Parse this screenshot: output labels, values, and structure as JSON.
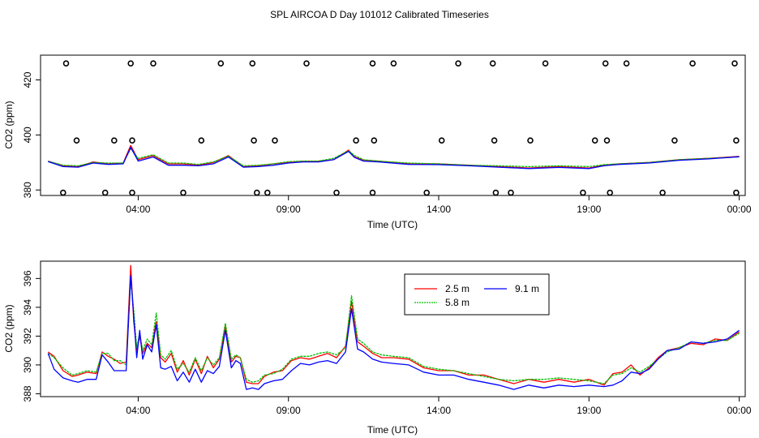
{
  "title": "SPL AIRCOA D  Day 101012  Calibrated Timeseries",
  "colors": {
    "red": "#ff0000",
    "green": "#00c000",
    "blue": "#0000ff",
    "black": "#000000"
  },
  "chart_data": [
    {
      "type": "scatter",
      "panel": "top",
      "xlabel": "Time (UTC)",
      "ylabel": "CO2 (ppm)",
      "x_ticks_labels": [
        "04:00",
        "09:00",
        "14:00",
        "19:00",
        "00:00"
      ],
      "x_ticks_hours": [
        4,
        9,
        14,
        19,
        24
      ],
      "y_ticks": [
        380,
        400,
        420
      ],
      "xlim_hours": [
        0.75,
        24.2
      ],
      "ylim": [
        378,
        429
      ],
      "line_series_hours": [
        1.0,
        1.5,
        2.0,
        2.5,
        3.0,
        3.5,
        3.75,
        4.0,
        4.5,
        5.0,
        5.5,
        6.0,
        6.5,
        7.0,
        7.5,
        8.0,
        8.5,
        9.0,
        9.5,
        10.0,
        10.5,
        11.0,
        11.2,
        11.5,
        12.0,
        13.0,
        14.0,
        15.0,
        16.0,
        17.0,
        18.0,
        19.0,
        19.5,
        20.0,
        21.0,
        22.0,
        23.0,
        24.0
      ],
      "line_series": [
        {
          "name": "2.5 m",
          "color": "#ff0000",
          "values": [
            390.5,
            388.8,
            388.5,
            390.2,
            389.5,
            389.8,
            396.2,
            391.0,
            392.5,
            389.5,
            389.5,
            389.0,
            390.0,
            392.5,
            388.5,
            388.8,
            389.5,
            390.0,
            390.5,
            390.5,
            391.0,
            394.5,
            392.0,
            390.8,
            390.5,
            389.5,
            389.5,
            389.0,
            388.5,
            388.0,
            388.5,
            388.0,
            389.0,
            389.5,
            390.0,
            391.0,
            391.5,
            392.2
          ]
        },
        {
          "name": "5.8 m",
          "color": "#00c000",
          "values": [
            390.4,
            389.0,
            388.8,
            390.0,
            389.8,
            389.8,
            395.0,
            391.5,
            392.8,
            389.8,
            389.8,
            389.3,
            390.2,
            392.3,
            388.8,
            389.0,
            389.5,
            390.3,
            390.5,
            390.5,
            391.5,
            394.2,
            392.5,
            391.0,
            390.5,
            389.8,
            389.5,
            389.0,
            388.8,
            388.5,
            388.8,
            388.5,
            389.2,
            389.5,
            390.0,
            391.0,
            391.5,
            392.0
          ]
        },
        {
          "name": "9.1 m",
          "color": "#0000ff",
          "values": [
            390.3,
            388.5,
            388.3,
            389.8,
            389.3,
            389.5,
            395.5,
            390.5,
            392.0,
            389.0,
            389.0,
            388.8,
            389.5,
            392.0,
            388.3,
            388.5,
            389.0,
            389.8,
            390.2,
            390.2,
            391.0,
            394.0,
            391.8,
            390.5,
            390.2,
            389.3,
            389.2,
            388.8,
            388.3,
            387.8,
            388.2,
            387.8,
            388.8,
            389.3,
            389.8,
            390.8,
            391.3,
            392.1
          ]
        }
      ],
      "marker_points_hours": [
        1.5,
        1.95,
        1.6,
        2.9,
        3.2,
        3.8,
        3.75,
        3.8,
        4.5,
        5.5,
        6.1,
        6.75,
        7.8,
        7.85,
        7.95,
        8.3,
        8.55,
        9.6,
        10.6,
        11.25,
        11.8,
        11.85,
        11.8,
        12.5,
        13.6,
        14.1,
        14.65,
        15.8,
        15.85,
        15.9,
        16.4,
        17.05,
        17.55,
        18.8,
        19.2,
        19.55,
        19.6,
        19.7,
        20.25,
        21.45,
        21.85,
        22.45,
        23.85,
        23.9,
        23.9
      ],
      "marker_points_values": [
        379,
        398,
        426,
        379,
        398,
        398,
        426,
        379,
        426,
        379,
        398,
        426,
        426,
        398,
        379,
        379,
        398,
        426,
        379,
        398,
        426,
        398,
        379,
        426,
        379,
        398,
        426,
        426,
        398,
        379,
        379,
        398,
        426,
        379,
        398,
        426,
        398,
        379,
        426,
        379,
        398,
        426,
        426,
        398,
        379
      ]
    },
    {
      "type": "line",
      "panel": "bottom",
      "xlabel": "Time (UTC)",
      "ylabel": "CO2 (ppm)",
      "x_ticks_labels": [
        "04:00",
        "09:00",
        "14:00",
        "19:00",
        "00:00"
      ],
      "x_ticks_hours": [
        4,
        9,
        14,
        19,
        24
      ],
      "y_ticks": [
        388,
        390,
        392,
        394,
        396
      ],
      "y_tick_labels": [
        "388",
        "390",
        "392",
        "394",
        "396"
      ],
      "xlim_hours": [
        0.75,
        24.2
      ],
      "ylim": [
        387.8,
        397.2
      ],
      "legend": [
        "2.5 m",
        "5.8 m",
        "9.1 m"
      ],
      "x_hours": [
        1.0,
        1.2,
        1.5,
        1.8,
        2.0,
        2.3,
        2.6,
        2.8,
        3.0,
        3.2,
        3.4,
        3.6,
        3.75,
        3.85,
        3.95,
        4.05,
        4.15,
        4.3,
        4.45,
        4.6,
        4.75,
        4.9,
        5.1,
        5.3,
        5.5,
        5.7,
        5.9,
        6.1,
        6.3,
        6.5,
        6.7,
        6.9,
        7.1,
        7.25,
        7.4,
        7.6,
        7.8,
        8.0,
        8.2,
        8.5,
        8.8,
        9.1,
        9.4,
        9.7,
        10.0,
        10.3,
        10.6,
        10.9,
        11.1,
        11.3,
        11.5,
        11.8,
        12.1,
        12.5,
        13.0,
        13.5,
        14.0,
        14.5,
        15.0,
        15.5,
        16.0,
        16.5,
        17.0,
        17.5,
        18.0,
        18.5,
        19.0,
        19.5,
        19.8,
        20.1,
        20.4,
        20.7,
        21.0,
        21.3,
        21.6,
        22.0,
        22.4,
        22.8,
        23.2,
        23.6,
        24.0
      ],
      "series": [
        {
          "name": "2.5 m",
          "color": "#ff0000",
          "values": [
            390.9,
            390.6,
            389.6,
            389.2,
            389.3,
            389.5,
            389.4,
            390.9,
            390.6,
            390.4,
            390.1,
            390.2,
            396.9,
            393.0,
            391.0,
            392.0,
            390.8,
            391.5,
            391.2,
            393.0,
            390.5,
            390.2,
            390.8,
            389.5,
            390.3,
            389.3,
            390.4,
            389.4,
            390.6,
            389.8,
            390.4,
            392.7,
            390.2,
            390.6,
            390.5,
            388.8,
            388.7,
            388.7,
            389.2,
            389.5,
            389.6,
            390.3,
            390.5,
            390.4,
            390.6,
            390.8,
            390.5,
            391.3,
            394.4,
            391.6,
            391.3,
            390.8,
            390.5,
            390.5,
            390.4,
            389.8,
            389.6,
            389.6,
            389.3,
            389.3,
            389.0,
            388.7,
            389.0,
            388.8,
            389.0,
            388.8,
            389.0,
            388.6,
            389.4,
            389.5,
            390.0,
            389.3,
            389.8,
            390.5,
            391.0,
            391.2,
            391.5,
            391.4,
            391.8,
            391.7,
            392.3
          ]
        },
        {
          "name": "5.8 m",
          "color": "#00c000",
          "values": [
            390.8,
            390.5,
            389.8,
            389.3,
            389.4,
            389.6,
            389.5,
            390.8,
            390.8,
            390.3,
            390.3,
            390.0,
            396.0,
            393.8,
            391.2,
            392.2,
            391.0,
            391.8,
            391.4,
            393.6,
            390.7,
            390.4,
            391.0,
            389.7,
            390.1,
            389.5,
            390.5,
            389.6,
            390.5,
            390.0,
            390.5,
            392.9,
            390.4,
            390.7,
            390.5,
            389.0,
            388.8,
            388.9,
            389.3,
            389.4,
            389.7,
            390.4,
            390.6,
            390.6,
            390.8,
            390.9,
            390.7,
            391.2,
            394.8,
            391.8,
            391.5,
            390.9,
            390.7,
            390.6,
            390.5,
            389.9,
            389.7,
            389.6,
            389.4,
            389.2,
            389.0,
            388.9,
            389.0,
            389.0,
            389.1,
            389.0,
            388.9,
            388.7,
            389.3,
            389.4,
            389.8,
            389.5,
            389.9,
            390.4,
            390.9,
            391.2,
            391.6,
            391.5,
            391.7,
            391.7,
            392.2
          ]
        },
        {
          "name": "9.1 m",
          "color": "#0000ff",
          "values": [
            390.8,
            389.7,
            389.1,
            388.9,
            388.8,
            389.0,
            389.0,
            390.7,
            390.2,
            389.6,
            389.6,
            389.6,
            396.2,
            393.4,
            390.5,
            392.4,
            390.4,
            391.4,
            390.9,
            392.8,
            389.8,
            389.7,
            389.9,
            388.9,
            389.5,
            388.8,
            389.7,
            388.8,
            389.6,
            389.4,
            389.9,
            392.4,
            389.8,
            390.3,
            390.1,
            388.3,
            388.4,
            388.3,
            388.7,
            388.9,
            389.0,
            389.6,
            390.1,
            390.0,
            390.2,
            390.3,
            390.1,
            390.9,
            393.9,
            391.1,
            390.9,
            390.4,
            390.2,
            390.1,
            390.0,
            389.5,
            389.3,
            389.3,
            389.0,
            388.8,
            388.6,
            388.3,
            388.6,
            388.4,
            388.6,
            388.5,
            388.6,
            388.5,
            388.6,
            388.9,
            389.5,
            389.4,
            389.7,
            390.4,
            391.0,
            391.1,
            391.6,
            391.5,
            391.6,
            391.8,
            392.4
          ]
        }
      ]
    }
  ]
}
